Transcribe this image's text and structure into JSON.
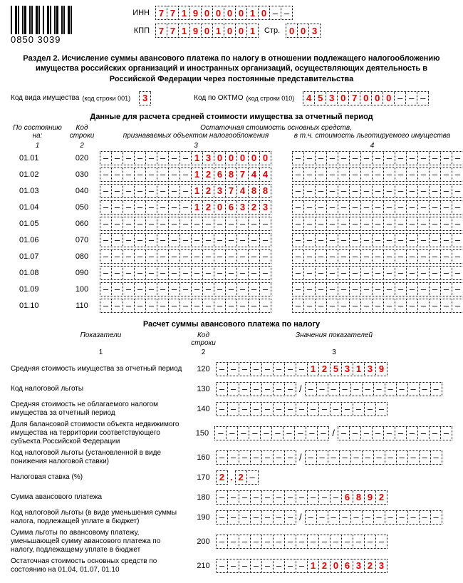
{
  "barcode_number": "0850 3039",
  "header": {
    "inn_label": "ИНН",
    "inn": [
      "7",
      "7",
      "1",
      "9",
      "0",
      "0",
      "0",
      "0",
      "1",
      "0",
      "–",
      "–"
    ],
    "kpp_label": "КПП",
    "kpp": [
      "7",
      "7",
      "1",
      "9",
      "0",
      "1",
      "0",
      "0",
      "1"
    ],
    "page_label": "Стр.",
    "page": [
      "0",
      "0",
      "3"
    ]
  },
  "section_title": "Раздел 2. Исчисление суммы авансового платежа по налогу в отношении подлежащего налогообложению имущества российских организаций и иностранных организаций, осуществляющих деятельность в Российской Федерации через постоянные представительства",
  "line001": {
    "label": "Код вида имущества",
    "paren": "(код строки 001)",
    "value": [
      "3"
    ]
  },
  "line010": {
    "label": "Код по ОКТМО",
    "paren": "(код строки 010)",
    "value": [
      "4",
      "5",
      "3",
      "0",
      "7",
      "0",
      "0",
      "0",
      "–",
      "–",
      "–"
    ]
  },
  "table_title": "Данные для расчета средней стоимости имущества за отчетный период",
  "table_head": {
    "date": "По состоянию на:",
    "code": "Код строки",
    "super3": "Остаточная стоимость основных средств,",
    "col3": "признаваемых объектом налогообложения",
    "col4": "в т.ч. стоимость льготируемого имущества"
  },
  "nums": {
    "c1": "1",
    "c2": "2",
    "c3": "3",
    "c4": "4"
  },
  "rows": [
    {
      "date": "01.01",
      "code": "020",
      "v3": [
        "–",
        "–",
        "–",
        "–",
        "–",
        "–",
        "–",
        "–",
        "1",
        "3",
        "0",
        "0",
        "0",
        "0",
        "0"
      ],
      "v4": [
        "–",
        "–",
        "–",
        "–",
        "–",
        "–",
        "–",
        "–",
        "–",
        "–",
        "–",
        "–",
        "–",
        "–",
        "–"
      ]
    },
    {
      "date": "01.02",
      "code": "030",
      "v3": [
        "–",
        "–",
        "–",
        "–",
        "–",
        "–",
        "–",
        "–",
        "1",
        "2",
        "6",
        "8",
        "7",
        "4",
        "4"
      ],
      "v4": [
        "–",
        "–",
        "–",
        "–",
        "–",
        "–",
        "–",
        "–",
        "–",
        "–",
        "–",
        "–",
        "–",
        "–",
        "–"
      ]
    },
    {
      "date": "01.03",
      "code": "040",
      "v3": [
        "–",
        "–",
        "–",
        "–",
        "–",
        "–",
        "–",
        "–",
        "1",
        "2",
        "3",
        "7",
        "4",
        "8",
        "8"
      ],
      "v4": [
        "–",
        "–",
        "–",
        "–",
        "–",
        "–",
        "–",
        "–",
        "–",
        "–",
        "–",
        "–",
        "–",
        "–",
        "–"
      ]
    },
    {
      "date": "01.04",
      "code": "050",
      "v3": [
        "–",
        "–",
        "–",
        "–",
        "–",
        "–",
        "–",
        "–",
        "1",
        "2",
        "0",
        "6",
        "3",
        "2",
        "3"
      ],
      "v4": [
        "–",
        "–",
        "–",
        "–",
        "–",
        "–",
        "–",
        "–",
        "–",
        "–",
        "–",
        "–",
        "–",
        "–",
        "–"
      ]
    },
    {
      "date": "01.05",
      "code": "060",
      "v3": [
        "–",
        "–",
        "–",
        "–",
        "–",
        "–",
        "–",
        "–",
        "–",
        "–",
        "–",
        "–",
        "–",
        "–",
        "–"
      ],
      "v4": [
        "–",
        "–",
        "–",
        "–",
        "–",
        "–",
        "–",
        "–",
        "–",
        "–",
        "–",
        "–",
        "–",
        "–",
        "–"
      ]
    },
    {
      "date": "01.06",
      "code": "070",
      "v3": [
        "–",
        "–",
        "–",
        "–",
        "–",
        "–",
        "–",
        "–",
        "–",
        "–",
        "–",
        "–",
        "–",
        "–",
        "–"
      ],
      "v4": [
        "–",
        "–",
        "–",
        "–",
        "–",
        "–",
        "–",
        "–",
        "–",
        "–",
        "–",
        "–",
        "–",
        "–",
        "–"
      ]
    },
    {
      "date": "01.07",
      "code": "080",
      "v3": [
        "–",
        "–",
        "–",
        "–",
        "–",
        "–",
        "–",
        "–",
        "–",
        "–",
        "–",
        "–",
        "–",
        "–",
        "–"
      ],
      "v4": [
        "–",
        "–",
        "–",
        "–",
        "–",
        "–",
        "–",
        "–",
        "–",
        "–",
        "–",
        "–",
        "–",
        "–",
        "–"
      ]
    },
    {
      "date": "01.08",
      "code": "090",
      "v3": [
        "–",
        "–",
        "–",
        "–",
        "–",
        "–",
        "–",
        "–",
        "–",
        "–",
        "–",
        "–",
        "–",
        "–",
        "–"
      ],
      "v4": [
        "–",
        "–",
        "–",
        "–",
        "–",
        "–",
        "–",
        "–",
        "–",
        "–",
        "–",
        "–",
        "–",
        "–",
        "–"
      ]
    },
    {
      "date": "01.09",
      "code": "100",
      "v3": [
        "–",
        "–",
        "–",
        "–",
        "–",
        "–",
        "–",
        "–",
        "–",
        "–",
        "–",
        "–",
        "–",
        "–",
        "–"
      ],
      "v4": [
        "–",
        "–",
        "–",
        "–",
        "–",
        "–",
        "–",
        "–",
        "–",
        "–",
        "–",
        "–",
        "–",
        "–",
        "–"
      ]
    },
    {
      "date": "01.10",
      "code": "110",
      "v3": [
        "–",
        "–",
        "–",
        "–",
        "–",
        "–",
        "–",
        "–",
        "–",
        "–",
        "–",
        "–",
        "–",
        "–",
        "–"
      ],
      "v4": [
        "–",
        "–",
        "–",
        "–",
        "–",
        "–",
        "–",
        "–",
        "–",
        "–",
        "–",
        "–",
        "–",
        "–",
        "–"
      ]
    }
  ],
  "calc_title": "Расчет суммы авансового платежа по налогу",
  "calc_head": {
    "c1": "Показатели",
    "c2": "Код строки",
    "c3": "Значения показателей",
    "n1": "1",
    "n2": "2",
    "n3": "3"
  },
  "calc_rows": [
    {
      "label": "Средняя стоимость имущества за отчетный период",
      "code": "120",
      "cells": [
        [
          "–",
          "–",
          "–",
          "–",
          "–",
          "–",
          "–",
          "–",
          "1",
          "2",
          "5",
          "3",
          "1",
          "3",
          "9"
        ]
      ]
    },
    {
      "label": "Код налоговой льготы",
      "code": "130",
      "cells": [
        [
          "–",
          "–",
          "–",
          "–",
          "–",
          "–",
          "–"
        ],
        "/",
        [
          "–",
          "–",
          "–",
          "–",
          "–",
          "–",
          "–",
          "–",
          "–",
          "–",
          "–",
          "–"
        ]
      ]
    },
    {
      "label": "Средняя стоимость не облагаемого налогом имущества за отчетный период",
      "code": "140",
      "cells": [
        [
          "–",
          "–",
          "–",
          "–",
          "–",
          "–",
          "–",
          "–",
          "–",
          "–",
          "–",
          "–",
          "–",
          "–",
          "–"
        ]
      ]
    },
    {
      "label": "Доля балансовой стоимости объекта недвижимого имущества на территории соответствующего субъекта Российской Федерации",
      "code": "150",
      "cells": [
        [
          "–",
          "–",
          "–",
          "–",
          "–",
          "–",
          "–",
          "–",
          "–",
          "–"
        ],
        "/",
        [
          "–",
          "–",
          "–",
          "–",
          "–",
          "–",
          "–",
          "–",
          "–",
          "–"
        ]
      ]
    },
    {
      "label": "Код налоговой льготы (установленной в виде понижения налоговой ставки)",
      "code": "160",
      "cells": [
        [
          "–",
          "–",
          "–",
          "–",
          "–",
          "–",
          "–"
        ],
        "/",
        [
          "–",
          "–",
          "–",
          "–",
          "–",
          "–",
          "–",
          "–",
          "–",
          "–",
          "–",
          "–"
        ]
      ]
    },
    {
      "label": "Налоговая ставка (%)",
      "code": "170",
      "cells": [
        [
          "2"
        ],
        ".",
        [
          "2",
          "–"
        ]
      ]
    },
    {
      "label": "Сумма авансового платежа",
      "code": "180",
      "cells": [
        [
          "–",
          "–",
          "–",
          "–",
          "–",
          "–",
          "–",
          "–",
          "–",
          "–",
          "–",
          "6",
          "8",
          "9",
          "2"
        ]
      ]
    },
    {
      "label": "Код налоговой льготы (в виде уменьшения суммы налога, подлежащей уплате в бюджет)",
      "code": "190",
      "cells": [
        [
          "–",
          "–",
          "–",
          "–",
          "–",
          "–",
          "–"
        ],
        "/",
        [
          "–",
          "–",
          "–",
          "–",
          "–",
          "–",
          "–",
          "–",
          "–",
          "–",
          "–",
          "–"
        ]
      ]
    },
    {
      "label": "Сумма льготы по авансовому платежу, уменьшающей сумму авансового платежа по налогу, подлежащему уплате в бюджет",
      "code": "200",
      "cells": [
        [
          "–",
          "–",
          "–",
          "–",
          "–",
          "–",
          "–",
          "–",
          "–",
          "–",
          "–",
          "–",
          "–",
          "–",
          "–"
        ]
      ]
    },
    {
      "label": "Остаточная стоимость основных средств по состоянию на 01.04, 01.07, 01.10",
      "code": "210",
      "cells": [
        [
          "–",
          "–",
          "–",
          "–",
          "–",
          "–",
          "–",
          "–",
          "1",
          "2",
          "0",
          "6",
          "3",
          "2",
          "3"
        ]
      ]
    }
  ]
}
